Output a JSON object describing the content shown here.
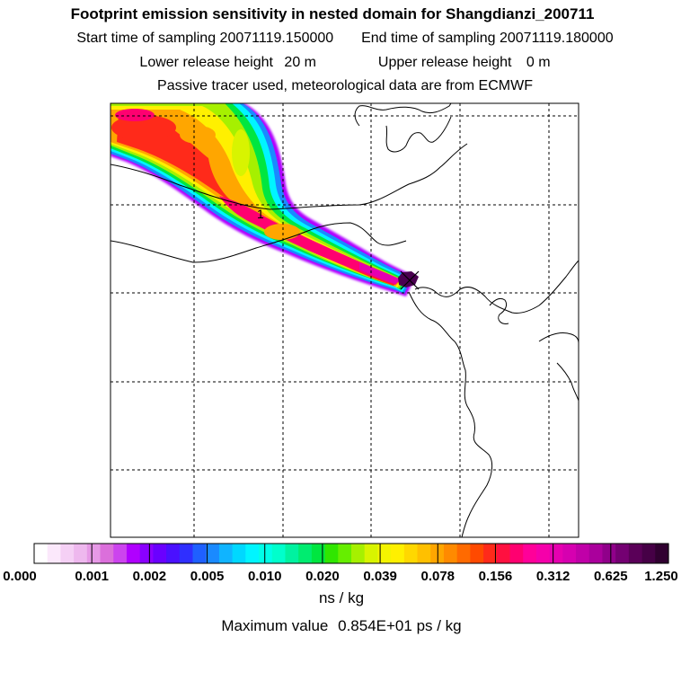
{
  "header": {
    "title": "Footprint emission sensitivity in nested domain for Shangdianzi_200711",
    "start_label": "Start time of sampling",
    "start_value": "20071119.150000",
    "end_label": "End time of sampling",
    "end_value": "20071119.180000",
    "lower_label": "Lower release height",
    "lower_value": "20 m",
    "upper_label": "Upper release height",
    "upper_value": "0 m",
    "note": "Passive tracer used, meteorological data are from ECMWF"
  },
  "map": {
    "station_label": "1"
  },
  "chart_data": {
    "type": "heatmap",
    "title": "Footprint emission sensitivity in nested domain for Shangdianzi_200711",
    "colorbar_ticks": [
      "0.000",
      "0.001",
      "0.002",
      "0.005",
      "0.010",
      "0.020",
      "0.039",
      "0.078",
      "0.156",
      "0.312",
      "0.625",
      "1.250"
    ],
    "colorbar_unit": "ns / kg",
    "scale": "logarithmic (doubling per color band)",
    "colors": [
      "#ffffff",
      "#fbe8fb",
      "#f5d0f5",
      "#eeb8ee",
      "#e699e6",
      "#db6fdb",
      "#cc44ee",
      "#b000ff",
      "#8a00ff",
      "#6a00ff",
      "#4a10ff",
      "#2f2fff",
      "#1f60ff",
      "#1a8aff",
      "#10b4ff",
      "#00d8ff",
      "#00f5ff",
      "#00ffe8",
      "#00ffcc",
      "#00f2a0",
      "#00ec70",
      "#00e640",
      "#30e600",
      "#66ee00",
      "#a6f000",
      "#d8f400",
      "#f4f400",
      "#fff000",
      "#ffd800",
      "#ffc000",
      "#ffa600",
      "#ff8a00",
      "#ff6a00",
      "#ff4a00",
      "#ff2a1a",
      "#ff1040",
      "#ff0070",
      "#ff0099",
      "#f500aa",
      "#e600b0",
      "#d600b0",
      "#c000a8",
      "#aa009c",
      "#90008a",
      "#740072",
      "#5a0058",
      "#460046",
      "#300030"
    ],
    "maximum_value_label": "Maximum value",
    "maximum_value": "0.854E+01",
    "maximum_value_unit": "ps / kg",
    "plume": "Footprint extends from the receptor station toward the north-west edge of the domain",
    "xlabel": "",
    "ylabel": ""
  },
  "footer": {
    "units": "ns / kg",
    "max_label": "Maximum value",
    "max_value": "0.854E+01",
    "max_unit": "ps / kg"
  }
}
